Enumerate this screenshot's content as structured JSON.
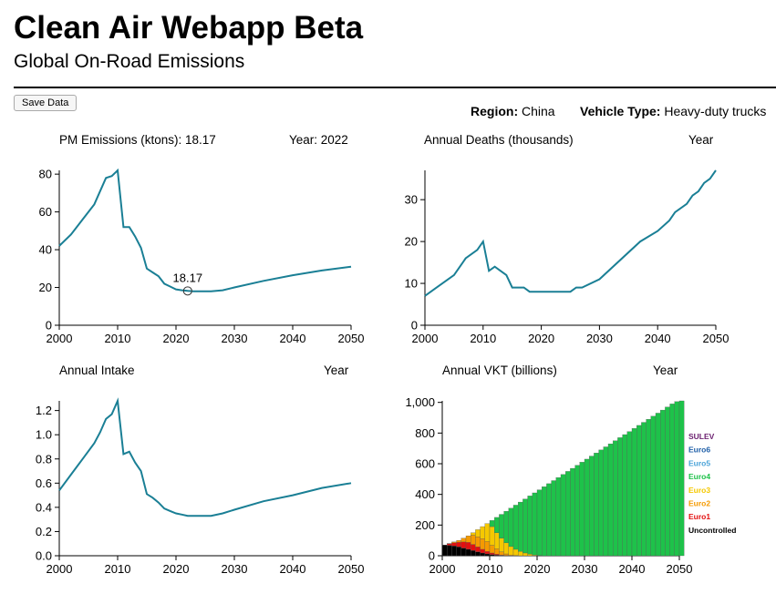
{
  "header": {
    "title": "Clean Air Webapp Beta",
    "subtitle": "Global On-Road Emissions"
  },
  "toolbar": {
    "save_label": "Save Data"
  },
  "filters": {
    "region_label": "Region:",
    "region_value": "China",
    "vehicle_label": "Vehicle Type:",
    "vehicle_value": "Heavy-duty trucks"
  },
  "colors": {
    "line": "#1a7f95"
  },
  "chart_data": [
    {
      "id": "pm",
      "type": "line",
      "title": "PM Emissions (ktons): 18.17",
      "year_label": "Year: 2022",
      "xlabel": "",
      "ylabel": "",
      "xlim": [
        2000,
        2050
      ],
      "ylim": [
        0,
        82
      ],
      "xticks": [
        2000,
        2010,
        2020,
        2030,
        2040,
        2050
      ],
      "yticks": [
        0,
        20,
        40,
        60,
        80
      ],
      "x": [
        2000,
        2002,
        2004,
        2006,
        2007,
        2008,
        2009,
        2010,
        2011,
        2012,
        2013,
        2014,
        2015,
        2016,
        2017,
        2018,
        2019,
        2020,
        2021,
        2022,
        2023,
        2024,
        2025,
        2026,
        2028,
        2030,
        2035,
        2040,
        2045,
        2050
      ],
      "y": [
        42,
        48,
        56,
        64,
        71,
        78,
        79,
        82,
        52,
        52,
        47,
        41,
        30,
        28,
        26,
        22,
        20.5,
        19,
        18.5,
        18.17,
        18,
        18,
        18,
        18,
        18.5,
        20,
        23.5,
        26.5,
        29,
        31
      ],
      "highlight": {
        "x": 2022,
        "y": 18.17,
        "label": "18.17"
      }
    },
    {
      "id": "deaths",
      "type": "line",
      "title": "Annual Deaths (thousands)",
      "year_label": "Year",
      "xlabel": "",
      "ylabel": "",
      "xlim": [
        2000,
        2050
      ],
      "ylim": [
        0,
        37
      ],
      "xticks": [
        2000,
        2010,
        2020,
        2030,
        2040,
        2050
      ],
      "yticks": [
        0,
        10,
        20,
        30
      ],
      "x": [
        2000,
        2002,
        2005,
        2007,
        2009,
        2010,
        2011,
        2012,
        2013,
        2014,
        2015,
        2016,
        2017,
        2018,
        2019,
        2020,
        2025,
        2026,
        2027,
        2030,
        2037,
        2040,
        2042,
        2043,
        2045,
        2046,
        2047,
        2048,
        2049,
        2050
      ],
      "y": [
        7,
        9,
        12,
        16,
        18,
        20,
        13,
        14,
        13,
        12,
        9,
        9,
        9,
        8,
        8,
        8,
        8,
        9,
        9,
        11,
        20,
        22.5,
        25,
        27,
        29,
        31,
        32,
        34,
        35,
        37
      ]
    },
    {
      "id": "intake",
      "type": "line",
      "title": "Annual Intake",
      "year_label": "Year",
      "xlabel": "",
      "ylabel": "",
      "xlim": [
        2000,
        2050
      ],
      "ylim": [
        0,
        1.28
      ],
      "xticks": [
        2000,
        2010,
        2020,
        2030,
        2040,
        2050
      ],
      "yticks": [
        0.0,
        0.2,
        0.4,
        0.6,
        0.8,
        1.0,
        1.2
      ],
      "ytick_labels": [
        "0.0",
        "0.2",
        "0.4",
        "0.6",
        "0.8",
        "1.0",
        "1.2"
      ],
      "x": [
        2000,
        2002,
        2004,
        2006,
        2007,
        2008,
        2009,
        2010,
        2011,
        2012,
        2013,
        2014,
        2015,
        2016,
        2017,
        2018,
        2019,
        2020,
        2021,
        2022,
        2023,
        2024,
        2025,
        2026,
        2028,
        2030,
        2035,
        2040,
        2045,
        2050
      ],
      "y": [
        0.54,
        0.67,
        0.8,
        0.93,
        1.02,
        1.13,
        1.17,
        1.28,
        0.84,
        0.86,
        0.77,
        0.7,
        0.51,
        0.48,
        0.44,
        0.39,
        0.37,
        0.35,
        0.34,
        0.33,
        0.33,
        0.33,
        0.33,
        0.33,
        0.35,
        0.38,
        0.45,
        0.5,
        0.56,
        0.6
      ]
    },
    {
      "id": "vkt",
      "type": "bar",
      "stacked": true,
      "title": "Annual VKT (billions)",
      "year_label": "Year",
      "xlabel": "",
      "ylabel": "",
      "xlim": [
        2000,
        2050
      ],
      "ylim": [
        0,
        1010
      ],
      "xticks": [
        2000,
        2010,
        2020,
        2030,
        2040,
        2050
      ],
      "yticks": [
        0,
        200,
        400,
        600,
        800,
        1000
      ],
      "ytick_labels": [
        "0",
        "200",
        "400",
        "600",
        "800",
        "1,000"
      ],
      "legend": [
        {
          "name": "SULEV",
          "color": "#6b1f6f"
        },
        {
          "name": "Euro6",
          "color": "#1f5fa8"
        },
        {
          "name": "Euro5",
          "color": "#4aa3d8"
        },
        {
          "name": "Euro4",
          "color": "#1ec24a"
        },
        {
          "name": "Euro3",
          "color": "#f5c800"
        },
        {
          "name": "Euro2",
          "color": "#f59a00"
        },
        {
          "name": "Euro1",
          "color": "#e31010"
        },
        {
          "name": "Uncontrolled",
          "color": "#000000"
        }
      ],
      "legend_placement": "right",
      "totals": [
        70,
        80,
        90,
        100,
        115,
        130,
        150,
        170,
        190,
        210,
        230,
        250,
        270,
        290,
        310,
        330,
        350,
        370,
        390,
        410,
        430,
        450,
        470,
        490,
        510,
        530,
        550,
        570,
        590,
        610,
        630,
        650,
        670,
        690,
        710,
        730,
        750,
        770,
        790,
        810,
        830,
        850,
        870,
        890,
        910,
        930,
        950,
        970,
        990,
        1005,
        1010
      ],
      "shares": {
        "Uncontrolled": [
          70,
          68,
          64,
          58,
          50,
          42,
          34,
          26,
          18,
          12,
          8,
          4,
          2,
          1,
          0
        ],
        "Euro1": [
          0,
          10,
          20,
          30,
          40,
          45,
          40,
          32,
          24,
          16,
          10,
          6,
          3,
          1,
          0
        ],
        "Euro2": [
          0,
          2,
          6,
          12,
          25,
          43,
          60,
          66,
          70,
          65,
          50,
          35,
          20,
          10,
          5,
          2,
          0
        ],
        "Euro3": [
          0,
          0,
          0,
          0,
          0,
          0,
          16,
          46,
          78,
          117,
          122,
          105,
          90,
          72,
          55,
          40,
          28,
          18,
          10,
          5,
          2,
          0
        ]
      }
    }
  ]
}
